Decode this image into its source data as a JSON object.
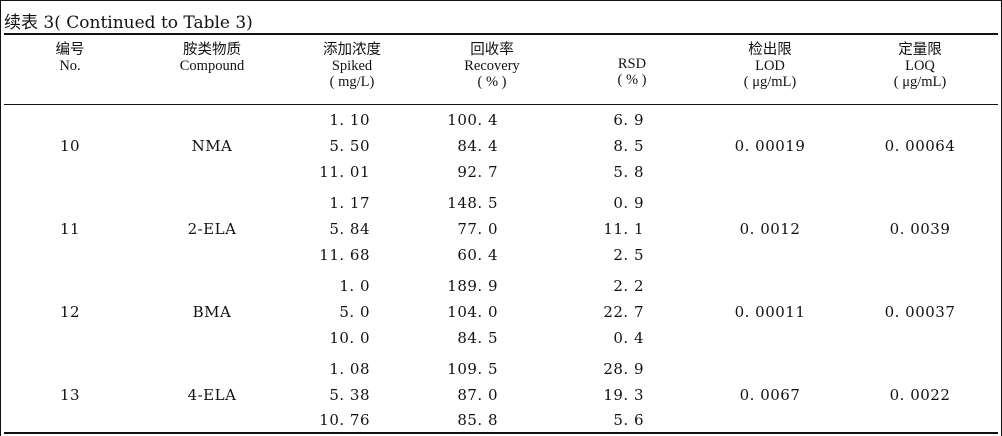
{
  "caption": "续表 3( Continued to Table 3)",
  "headers": [
    {
      "zh": "编号",
      "en": "No.",
      "unit": ""
    },
    {
      "zh": "胺类物质",
      "en": "Compound",
      "unit": ""
    },
    {
      "zh": "添加浓度",
      "en": "Spiked",
      "unit": "( mg/L)"
    },
    {
      "zh": "回收率",
      "en": "Recovery",
      "unit": "( % )"
    },
    {
      "zh": "RSD",
      "en": "( % )",
      "unit": ""
    },
    {
      "zh": "检出限",
      "en": "LOD",
      "unit": "( μg/mL)"
    },
    {
      "zh": "定量限",
      "en": "LOQ",
      "unit": "( μg/mL)"
    }
  ],
  "groups": [
    {
      "no": "10",
      "compound": "NMA",
      "lod": "0. 00019",
      "loq": "0. 00064",
      "rows": [
        {
          "spiked": "1. 10",
          "recovery": "100. 4",
          "rsd": "6. 9"
        },
        {
          "spiked": "5. 50",
          "recovery": "84. 4",
          "rsd": "8. 5"
        },
        {
          "spiked": "11. 01",
          "recovery": "92. 7",
          "rsd": "5. 8"
        }
      ]
    },
    {
      "no": "11",
      "compound": "2-ELA",
      "lod": "0. 0012",
      "loq": "0. 0039",
      "rows": [
        {
          "spiked": "1. 17",
          "recovery": "148. 5",
          "rsd": "0. 9"
        },
        {
          "spiked": "5. 84",
          "recovery": "77. 0",
          "rsd": "11. 1"
        },
        {
          "spiked": "11. 68",
          "recovery": "60. 4",
          "rsd": "2. 5"
        }
      ]
    },
    {
      "no": "12",
      "compound": "BMA",
      "lod": "0. 00011",
      "loq": "0. 00037",
      "rows": [
        {
          "spiked": "1. 0",
          "recovery": "189. 9",
          "rsd": "2. 2"
        },
        {
          "spiked": "5. 0",
          "recovery": "104. 0",
          "rsd": "22. 7"
        },
        {
          "spiked": "10. 0",
          "recovery": "84. 5",
          "rsd": "0. 4"
        }
      ]
    },
    {
      "no": "13",
      "compound": "4-ELA",
      "lod": "0. 0067",
      "loq": "0. 0022",
      "rows": [
        {
          "spiked": "1. 08",
          "recovery": "109. 5",
          "rsd": "28. 9"
        },
        {
          "spiked": "5. 38",
          "recovery": "87. 0",
          "rsd": "19. 3"
        },
        {
          "spiked": "10. 76",
          "recovery": "85. 8",
          "rsd": "5. 6"
        }
      ]
    }
  ]
}
